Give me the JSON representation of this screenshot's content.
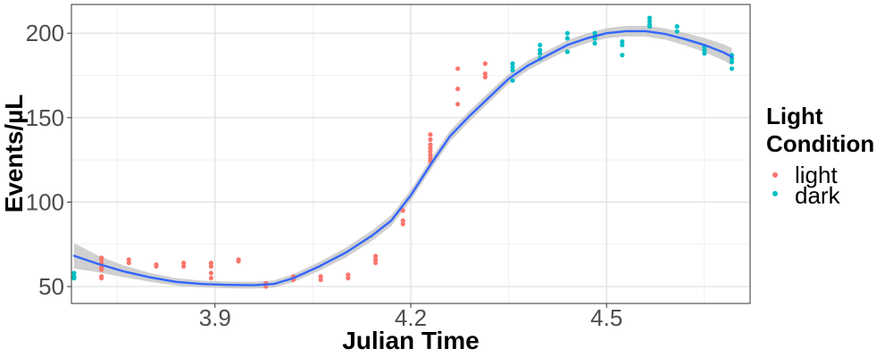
{
  "chart_data": {
    "type": "scatter",
    "xlabel": "Julian Time",
    "ylabel": "Events/µL",
    "xlim": [
      3.68,
      4.72
    ],
    "ylim": [
      40,
      217
    ],
    "x_major_ticks": [
      3.9,
      4.2,
      4.5
    ],
    "x_tick_labels": [
      "3.9",
      "4.2",
      "4.5"
    ],
    "x_minor_gridlines": [
      3.75,
      4.05,
      4.35,
      4.65
    ],
    "y_major_ticks": [
      50,
      100,
      150,
      200
    ],
    "y_tick_labels": [
      "50",
      "100",
      "150",
      "200"
    ],
    "y_minor_gridlines": [
      75,
      125,
      175
    ],
    "grid": true,
    "legend": {
      "title_lines": [
        "Light",
        "Condition"
      ],
      "placement": "right",
      "entries": [
        {
          "label": "light",
          "color": "#F8766D"
        },
        {
          "label": "dark",
          "color": "#00BFC4"
        }
      ]
    },
    "series": [
      {
        "name": "light",
        "color": "#F8766D",
        "points": [
          [
            3.726,
            55
          ],
          [
            3.726,
            56
          ],
          [
            3.726,
            60
          ],
          [
            3.726,
            61
          ],
          [
            3.726,
            62
          ],
          [
            3.726,
            64
          ],
          [
            3.726,
            66
          ],
          [
            3.726,
            67
          ],
          [
            3.768,
            64
          ],
          [
            3.768,
            66
          ],
          [
            3.81,
            62
          ],
          [
            3.81,
            63
          ],
          [
            3.852,
            62
          ],
          [
            3.852,
            64
          ],
          [
            3.894,
            55
          ],
          [
            3.894,
            58
          ],
          [
            3.894,
            62
          ],
          [
            3.894,
            64
          ],
          [
            3.936,
            65
          ],
          [
            3.936,
            66
          ],
          [
            3.978,
            50
          ],
          [
            3.978,
            52
          ],
          [
            4.02,
            54
          ],
          [
            4.02,
            55
          ],
          [
            4.02,
            56
          ],
          [
            4.062,
            54
          ],
          [
            4.062,
            56
          ],
          [
            4.104,
            55
          ],
          [
            4.104,
            57
          ],
          [
            4.146,
            64
          ],
          [
            4.146,
            66
          ],
          [
            4.146,
            68
          ],
          [
            4.188,
            87
          ],
          [
            4.188,
            89
          ],
          [
            4.188,
            95
          ],
          [
            4.23,
            124
          ],
          [
            4.23,
            126
          ],
          [
            4.23,
            128
          ],
          [
            4.23,
            130
          ],
          [
            4.23,
            132
          ],
          [
            4.23,
            134
          ],
          [
            4.23,
            137
          ],
          [
            4.23,
            140
          ],
          [
            4.272,
            158
          ],
          [
            4.272,
            167
          ],
          [
            4.272,
            179
          ],
          [
            4.314,
            174
          ],
          [
            4.314,
            176
          ],
          [
            4.314,
            182
          ]
        ]
      },
      {
        "name": "dark",
        "color": "#00BFC4",
        "points": [
          [
            3.684,
            55
          ],
          [
            3.684,
            56
          ],
          [
            3.684,
            58
          ],
          [
            4.356,
            172
          ],
          [
            4.356,
            178
          ],
          [
            4.356,
            180
          ],
          [
            4.356,
            182
          ],
          [
            4.398,
            185
          ],
          [
            4.398,
            188
          ],
          [
            4.398,
            190
          ],
          [
            4.398,
            193
          ],
          [
            4.44,
            189
          ],
          [
            4.44,
            197
          ],
          [
            4.44,
            200
          ],
          [
            4.482,
            194
          ],
          [
            4.482,
            197
          ],
          [
            4.482,
            198
          ],
          [
            4.482,
            200
          ],
          [
            4.524,
            187
          ],
          [
            4.524,
            193
          ],
          [
            4.524,
            195
          ],
          [
            4.566,
            204
          ],
          [
            4.566,
            205
          ],
          [
            4.566,
            207
          ],
          [
            4.566,
            209
          ],
          [
            4.608,
            201
          ],
          [
            4.608,
            204
          ],
          [
            4.65,
            188
          ],
          [
            4.65,
            190
          ],
          [
            4.65,
            192
          ],
          [
            4.692,
            179
          ],
          [
            4.692,
            183
          ],
          [
            4.692,
            185
          ],
          [
            4.692,
            187
          ]
        ]
      }
    ],
    "smooth": {
      "method": "loess",
      "color": "#3366FF",
      "band_color": "#C8C8C8",
      "points": [
        [
          3.684,
          68.2,
          7.5
        ],
        [
          3.72,
          63.5,
          5.0
        ],
        [
          3.76,
          59,
          3.5
        ],
        [
          3.8,
          55.5,
          2.6
        ],
        [
          3.84,
          52.8,
          2.2
        ],
        [
          3.88,
          51.5,
          2.0
        ],
        [
          3.92,
          51,
          2.0
        ],
        [
          3.96,
          50.8,
          2.0
        ],
        [
          3.99,
          51.5,
          2.1
        ],
        [
          4.02,
          55,
          2.3
        ],
        [
          4.06,
          62,
          2.6
        ],
        [
          4.1,
          70,
          2.9
        ],
        [
          4.14,
          80,
          3.1
        ],
        [
          4.17,
          89,
          3.2
        ],
        [
          4.2,
          104,
          3.2
        ],
        [
          4.23,
          122,
          3.2
        ],
        [
          4.26,
          139,
          3.2
        ],
        [
          4.29,
          151,
          3.1
        ],
        [
          4.32,
          162,
          3.0
        ],
        [
          4.35,
          173,
          2.9
        ],
        [
          4.38,
          181,
          2.8
        ],
        [
          4.41,
          187,
          2.8
        ],
        [
          4.44,
          193,
          2.9
        ],
        [
          4.47,
          197,
          2.9
        ],
        [
          4.5,
          200,
          3.0
        ],
        [
          4.53,
          201.2,
          3.1
        ],
        [
          4.56,
          201.2,
          3.2
        ],
        [
          4.59,
          199.5,
          3.4
        ],
        [
          4.62,
          196.5,
          3.7
        ],
        [
          4.65,
          193,
          4.2
        ],
        [
          4.68,
          188.5,
          4.8
        ],
        [
          4.692,
          186,
          5.2
        ]
      ]
    }
  }
}
